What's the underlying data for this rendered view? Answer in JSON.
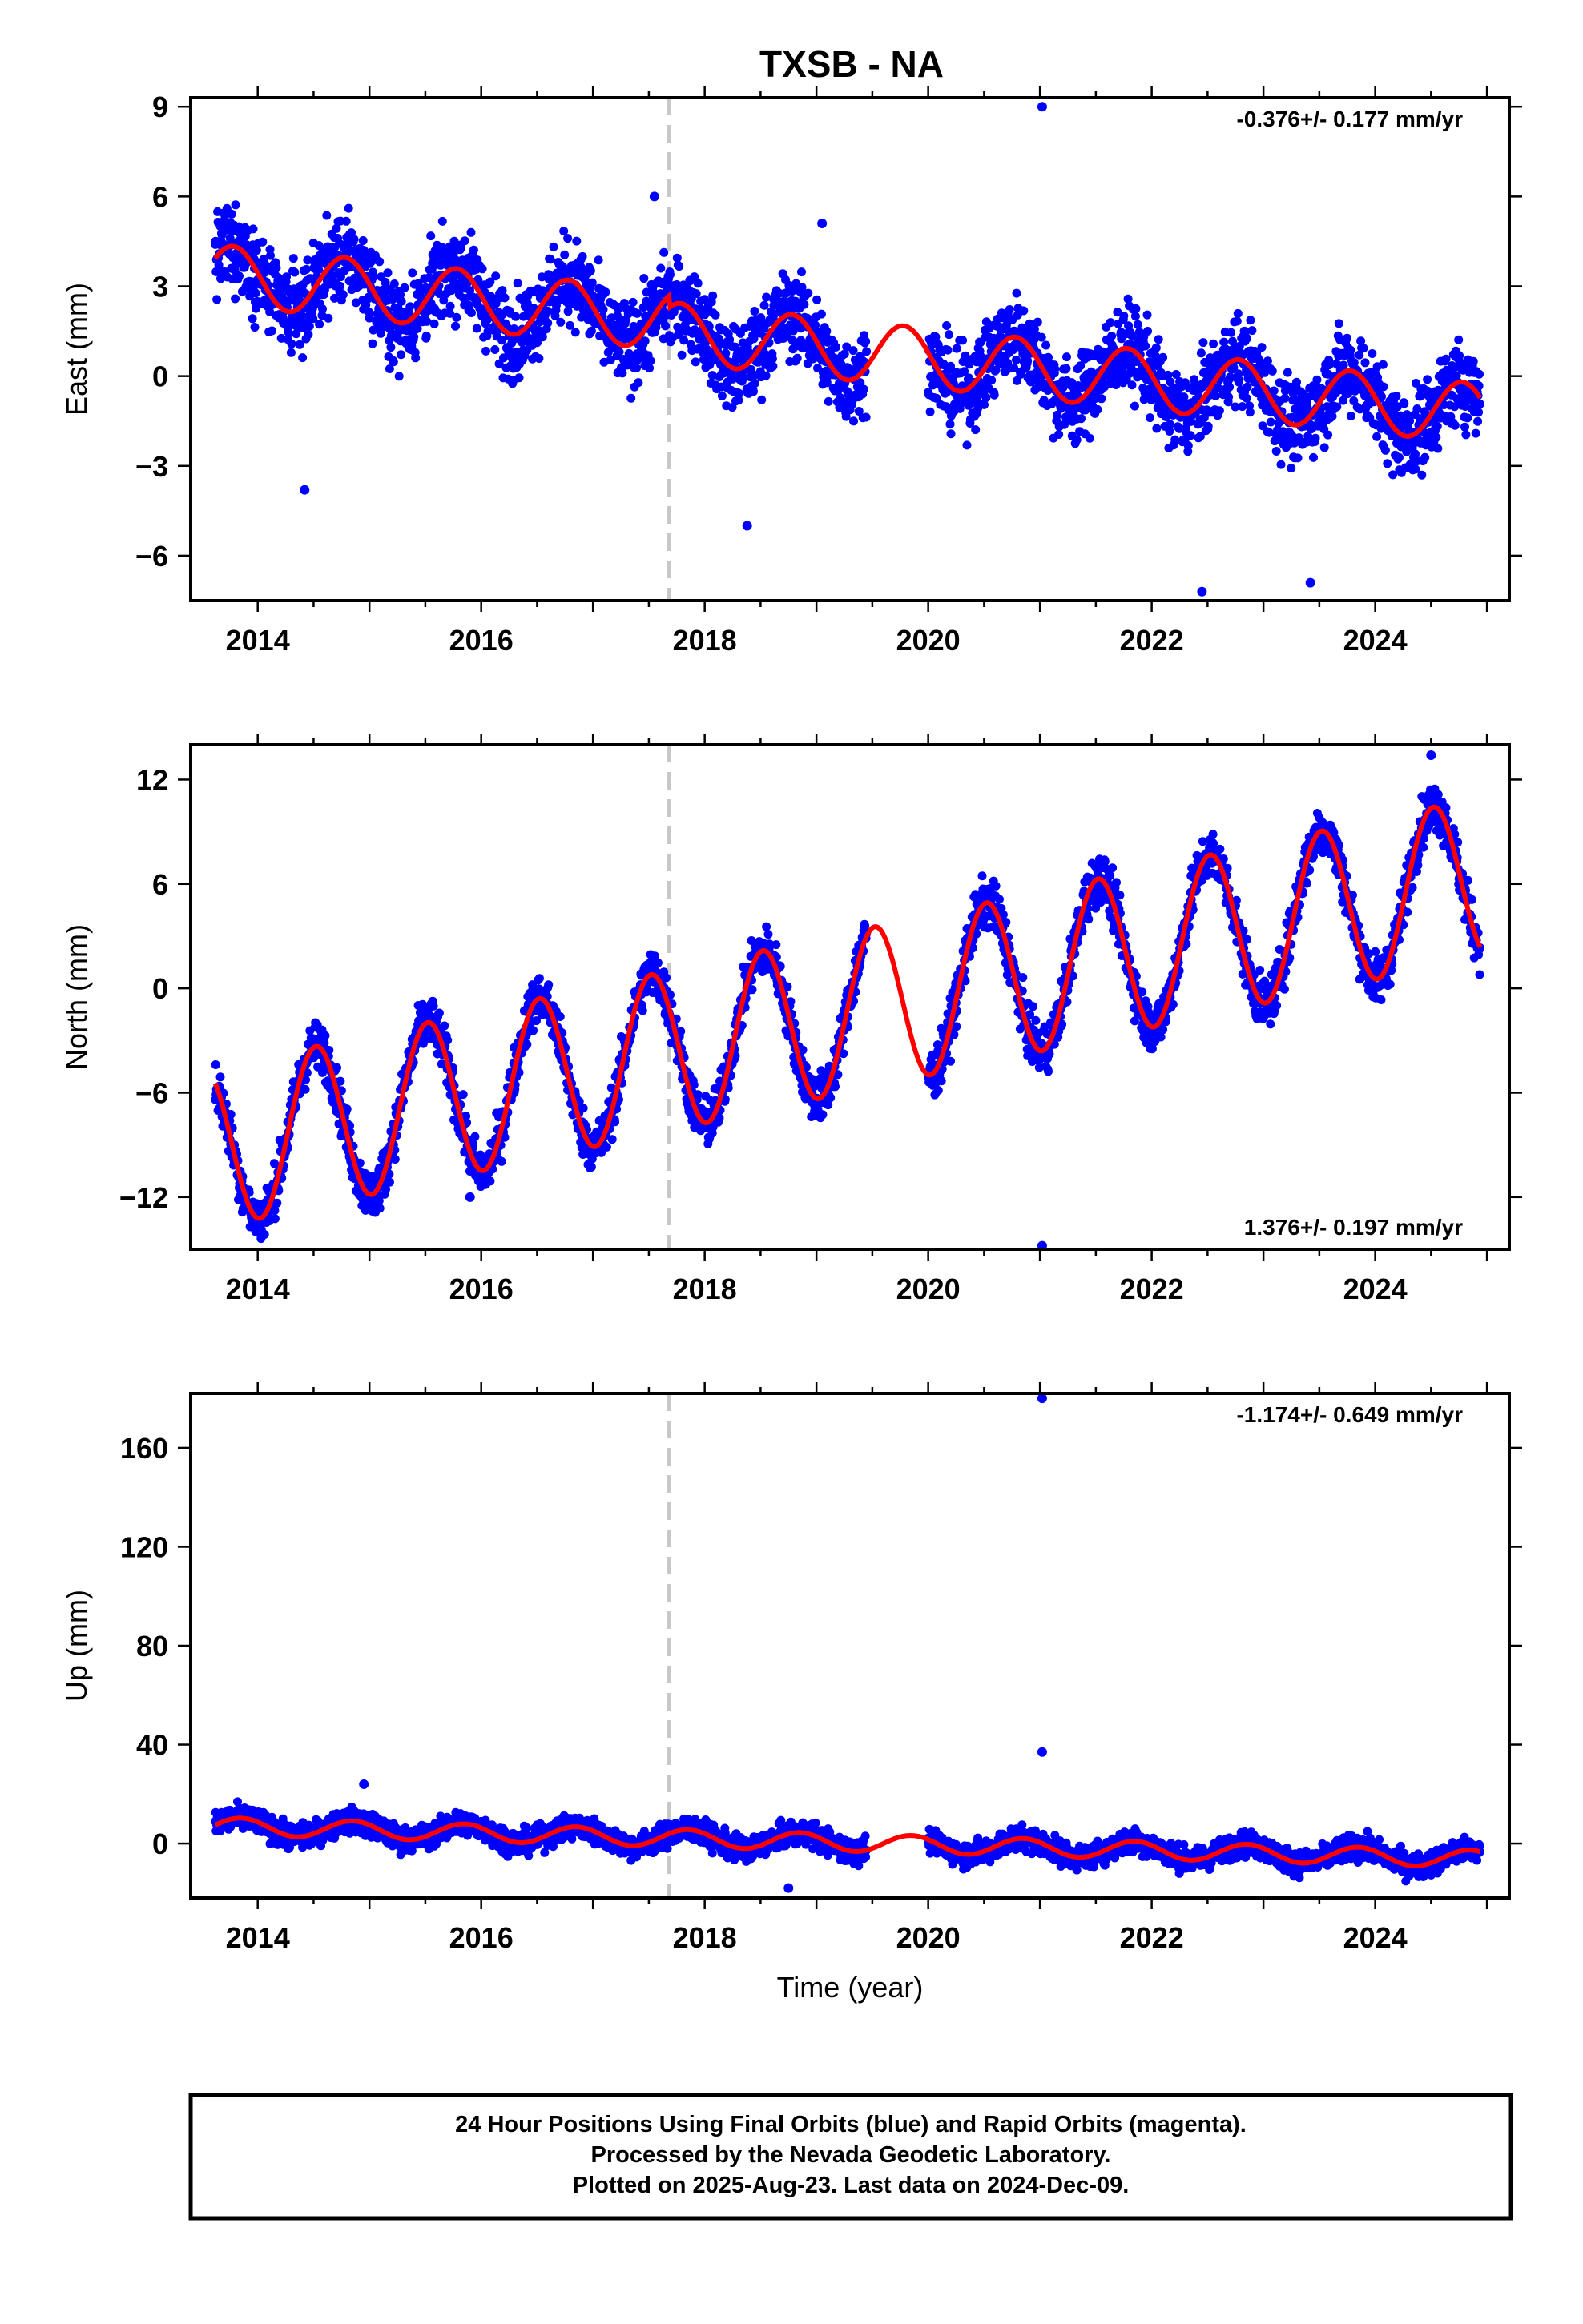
{
  "chart_data": [
    {
      "type": "scatter",
      "title": "TXSB - NA",
      "ylabel": "East (mm)",
      "xlabel": "",
      "xlim": [
        2013.4,
        2025.2
      ],
      "ylim": [
        -7.5,
        9.3
      ],
      "xticks": [
        2014,
        2016,
        2018,
        2020,
        2022,
        2024
      ],
      "yticks": [
        -6,
        -3,
        0,
        3,
        6,
        9
      ],
      "ytick_labels": [
        "−6",
        "−3",
        "0",
        "3",
        "6",
        "9"
      ],
      "rate": "-0.376+/- 0.177 mm/yr",
      "rate_position": "top-right",
      "equipment_change": 2017.68,
      "model": {
        "offset": 1.3,
        "trend": -0.376,
        "amp": 1.0,
        "phase_year": 0.78,
        "t0": 2019.2,
        "step": -0.4
      },
      "series": [
        {
          "label": "daily positions",
          "color": "#0000ff",
          "segments": [
            [
              2013.62,
              2019.45
            ],
            [
              2020.0,
              2024.94
            ]
          ],
          "scatter_sd": 1.0,
          "outliers": [
            [
              2021.02,
              9.0
            ],
            [
              2017.55,
              6.0
            ],
            [
              2014.42,
              -3.8
            ],
            [
              2018.38,
              -5.0
            ],
            [
              2019.05,
              5.1
            ],
            [
              2022.45,
              -7.2
            ],
            [
              2023.42,
              -6.9
            ]
          ]
        },
        {
          "label": "model fit",
          "color": "#ff0000"
        }
      ],
      "grid": false
    },
    {
      "type": "scatter",
      "title": "",
      "ylabel": "North (mm)",
      "xlabel": "",
      "xlim": [
        2013.4,
        2025.2
      ],
      "ylim": [
        -15,
        14
      ],
      "xticks": [
        2014,
        2016,
        2018,
        2020,
        2022,
        2024
      ],
      "yticks": [
        -12,
        -6,
        0,
        6,
        12
      ],
      "ytick_labels": [
        "−12",
        "−6",
        "0",
        "6",
        "12"
      ],
      "rate": "1.376+/- 0.197 mm/yr",
      "rate_position": "bottom-right",
      "equipment_change": 2017.68,
      "model": {
        "offset": -1.5,
        "trend": 1.376,
        "amp": 4.6,
        "phase_year": 0.52,
        "t0": 2019.2,
        "step": 0.0
      },
      "series": [
        {
          "label": "daily positions",
          "color": "#0000ff",
          "segments": [
            [
              2013.62,
              2019.45
            ],
            [
              2020.0,
              2024.94
            ]
          ],
          "scatter_sd": 1.0,
          "outliers": [
            [
              2021.02,
              -14.8
            ],
            [
              2024.5,
              13.4
            ],
            [
              2015.9,
              -12.0
            ]
          ]
        },
        {
          "label": "model fit",
          "color": "#ff0000"
        }
      ],
      "grid": false
    },
    {
      "type": "scatter",
      "title": "",
      "ylabel": "Up (mm)",
      "xlabel": "Time (year)",
      "xlim": [
        2013.4,
        2025.2
      ],
      "ylim": [
        -22,
        182
      ],
      "xticks": [
        2014,
        2016,
        2018,
        2020,
        2022,
        2024
      ],
      "yticks": [
        0,
        40,
        80,
        120,
        160
      ],
      "ytick_labels": [
        "0",
        "40",
        "80",
        "120",
        "160"
      ],
      "rate": "-1.174+/- 0.649 mm/yr",
      "rate_position": "top-right",
      "equipment_change": 2017.68,
      "model": {
        "offset": 0.5,
        "trend": -1.174,
        "amp": 3.5,
        "phase_year": 0.85,
        "t0": 2019.2,
        "step": 0.0
      },
      "series": [
        {
          "label": "daily positions",
          "color": "#0000ff",
          "segments": [
            [
              2013.62,
              2019.45
            ],
            [
              2020.0,
              2024.94
            ]
          ],
          "scatter_sd": 3.5,
          "outliers": [
            [
              2021.02,
              180
            ],
            [
              2021.02,
              37
            ],
            [
              2014.95,
              24
            ],
            [
              2018.75,
              -18
            ]
          ]
        },
        {
          "label": "model fit",
          "color": "#ff0000"
        }
      ],
      "grid": false
    }
  ],
  "footer": {
    "line1": "24 Hour Positions Using Final Orbits (blue) and Rapid Orbits (magenta).",
    "line2": "Processed by the Nevada Geodetic Laboratory.",
    "line3": "Plotted on 2025-Aug-23. Last data on 2024-Dec-09."
  }
}
